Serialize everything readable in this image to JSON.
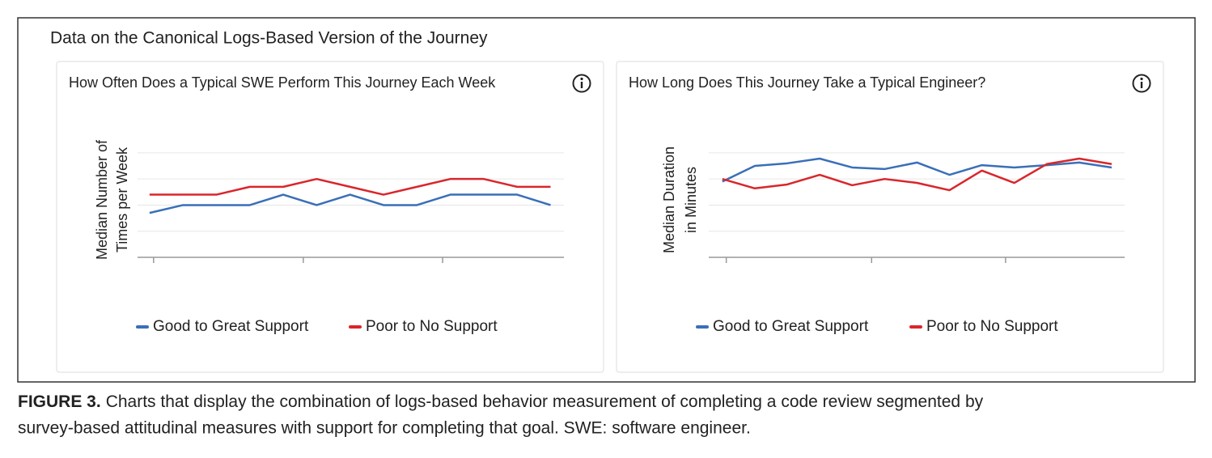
{
  "title": "Data on the Canonical Logs-Based Version of the Journey",
  "chart_data": [
    {
      "type": "line",
      "title": "How Often Does a Typical SWE Perform This Journey Each Week",
      "ylabel": [
        "Median  Number of",
        "Times per Week"
      ],
      "x": [
        0,
        1,
        2,
        3,
        4,
        5,
        6,
        7,
        8,
        9,
        10,
        11,
        12
      ],
      "xlim": [
        -0.36,
        12.4
      ],
      "xticks": [
        0.12,
        4.6,
        8.77
      ],
      "ylim": [
        0,
        4.4
      ],
      "yticks": [
        0,
        1,
        2,
        3,
        4
      ],
      "grid": true,
      "series": [
        {
          "name": "Good to Great Support",
          "color": "#3a6fb8",
          "values": [
            1.7,
            2.0,
            2.0,
            2.0,
            2.4,
            2.0,
            2.4,
            2.0,
            2.0,
            2.4,
            2.4,
            2.4,
            2.0
          ]
        },
        {
          "name": "Poor to No Support",
          "color": "#d9262b",
          "values": [
            2.4,
            2.4,
            2.4,
            2.7,
            2.7,
            3.0,
            2.7,
            2.4,
            2.7,
            3.0,
            3.0,
            2.7,
            2.7
          ]
        }
      ]
    },
    {
      "type": "line",
      "title": "How Long Does This Journey Take a Typical Engineer?",
      "ylabel": [
        "Median  Duration",
        "in Minutes"
      ],
      "x": [
        0,
        1,
        2,
        3,
        4,
        5,
        6,
        7,
        8,
        9,
        10,
        11,
        12
      ],
      "xlim": [
        -0.42,
        12.4
      ],
      "xticks": [
        0.12,
        4.6,
        8.73
      ],
      "ylim": [
        0,
        4.4
      ],
      "yticks": [
        0,
        1,
        2,
        3,
        4
      ],
      "grid": true,
      "series": [
        {
          "name": "Good to Great Support",
          "color": "#3a6fb8",
          "values": [
            2.9,
            3.5,
            3.6,
            3.78,
            3.44,
            3.38,
            3.63,
            3.16,
            3.53,
            3.44,
            3.53,
            3.63,
            3.44
          ]
        },
        {
          "name": "Poor to No Support",
          "color": "#d9262b",
          "values": [
            3.0,
            2.64,
            2.79,
            3.16,
            2.76,
            3.0,
            2.85,
            2.57,
            3.32,
            2.85,
            3.57,
            3.78,
            3.57
          ]
        }
      ]
    }
  ],
  "caption": {
    "label": "FIGURE 3.",
    "text": [
      "Charts that display the combination of logs-based behavior measurement of completing a code review segmented by",
      "survey-based attitudinal measures with support for completing that goal. SWE: software engineer."
    ]
  }
}
